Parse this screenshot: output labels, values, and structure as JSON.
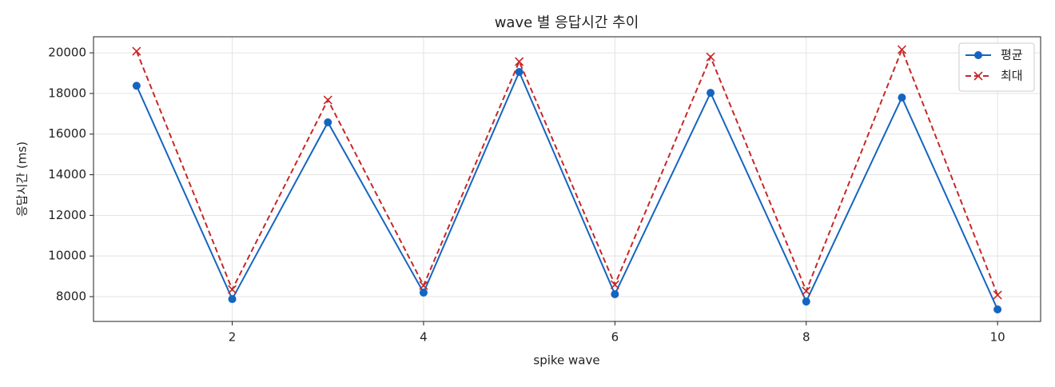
{
  "chart_data": {
    "type": "line",
    "title": "wave 별 응답시간 추이",
    "x_label": "spike wave",
    "y_label": "응답시간 (ms)",
    "x": [
      1,
      2,
      3,
      4,
      5,
      6,
      7,
      8,
      9,
      10
    ],
    "series": [
      {
        "name": "평균",
        "color": "#1565c0",
        "marker": "o",
        "linestyle": "solid",
        "values": [
          18380,
          7880,
          16580,
          8200,
          19060,
          8120,
          18030,
          7760,
          17800,
          7370
        ]
      },
      {
        "name": "최대",
        "color": "#c62828",
        "marker": "x",
        "linestyle": "dashed",
        "values": [
          20080,
          8350,
          17680,
          8550,
          19570,
          8590,
          19800,
          8280,
          20160,
          8080
        ]
      }
    ],
    "xlim": [
      0.55,
      10.45
    ],
    "ylim": [
      6780,
      20790
    ],
    "xticks": [
      2,
      4,
      6,
      8,
      10
    ],
    "yticks": [
      8000,
      10000,
      12000,
      14000,
      16000,
      18000,
      20000
    ],
    "grid": true,
    "legend": "upper right"
  }
}
